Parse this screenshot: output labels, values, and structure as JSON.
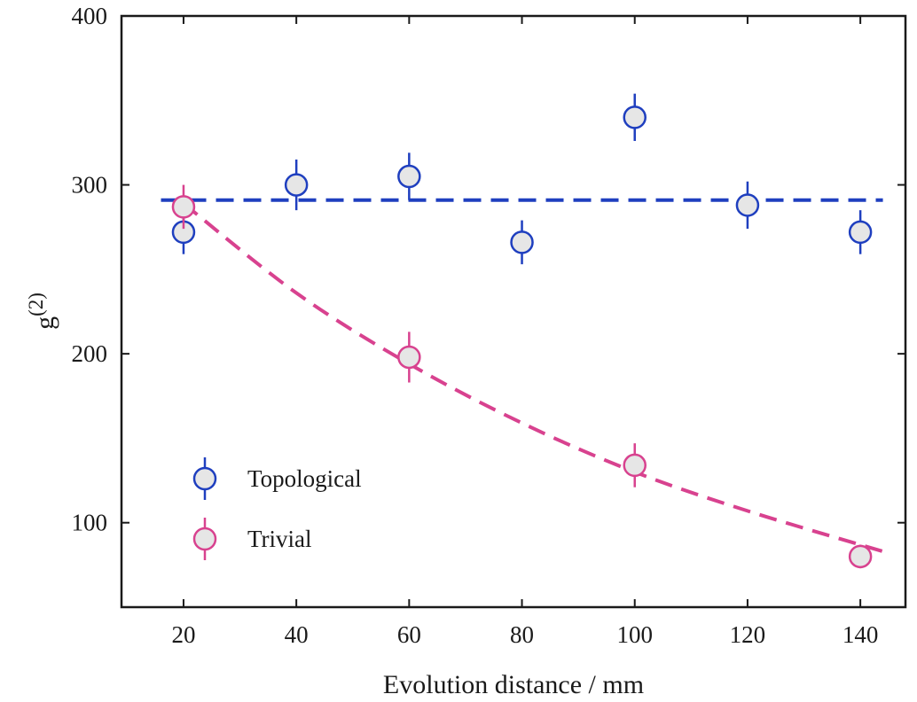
{
  "chart_data": {
    "type": "scatter",
    "xlabel": "Evolution distance / mm",
    "ylabel": "g",
    "ylabel_superscript": "(2)",
    "xlim": [
      9,
      148
    ],
    "ylim": [
      50,
      400
    ],
    "xticks": [
      20,
      40,
      60,
      80,
      100,
      120,
      140
    ],
    "yticks": [
      100,
      200,
      300,
      400
    ],
    "grid": false,
    "legend_position": "lower-left",
    "series": [
      {
        "name": "Topological",
        "color": "#1f3fbf",
        "marker_fill": "#e6e6e6",
        "x": [
          20,
          40,
          60,
          80,
          100,
          120,
          140
        ],
        "y": [
          272,
          300,
          305,
          266,
          340,
          288,
          272
        ],
        "yerr": [
          13,
          15,
          14,
          13,
          14,
          14,
          13
        ],
        "fit": {
          "style": "dashed",
          "x": [
            16,
            144
          ],
          "y": [
            291,
            291
          ]
        }
      },
      {
        "name": "Trivial",
        "color": "#d8428f",
        "marker_fill": "#e6e6e6",
        "x": [
          20,
          60,
          100,
          140
        ],
        "y": [
          287,
          198,
          134,
          80
        ],
        "yerr": [
          13,
          15,
          13,
          7
        ],
        "fit": {
          "style": "dashed",
          "x": [
            20,
            40,
            60,
            80,
            100,
            120,
            144
          ],
          "y": [
            289,
            236,
            194,
            159,
            130,
            107,
            83
          ]
        }
      }
    ]
  }
}
